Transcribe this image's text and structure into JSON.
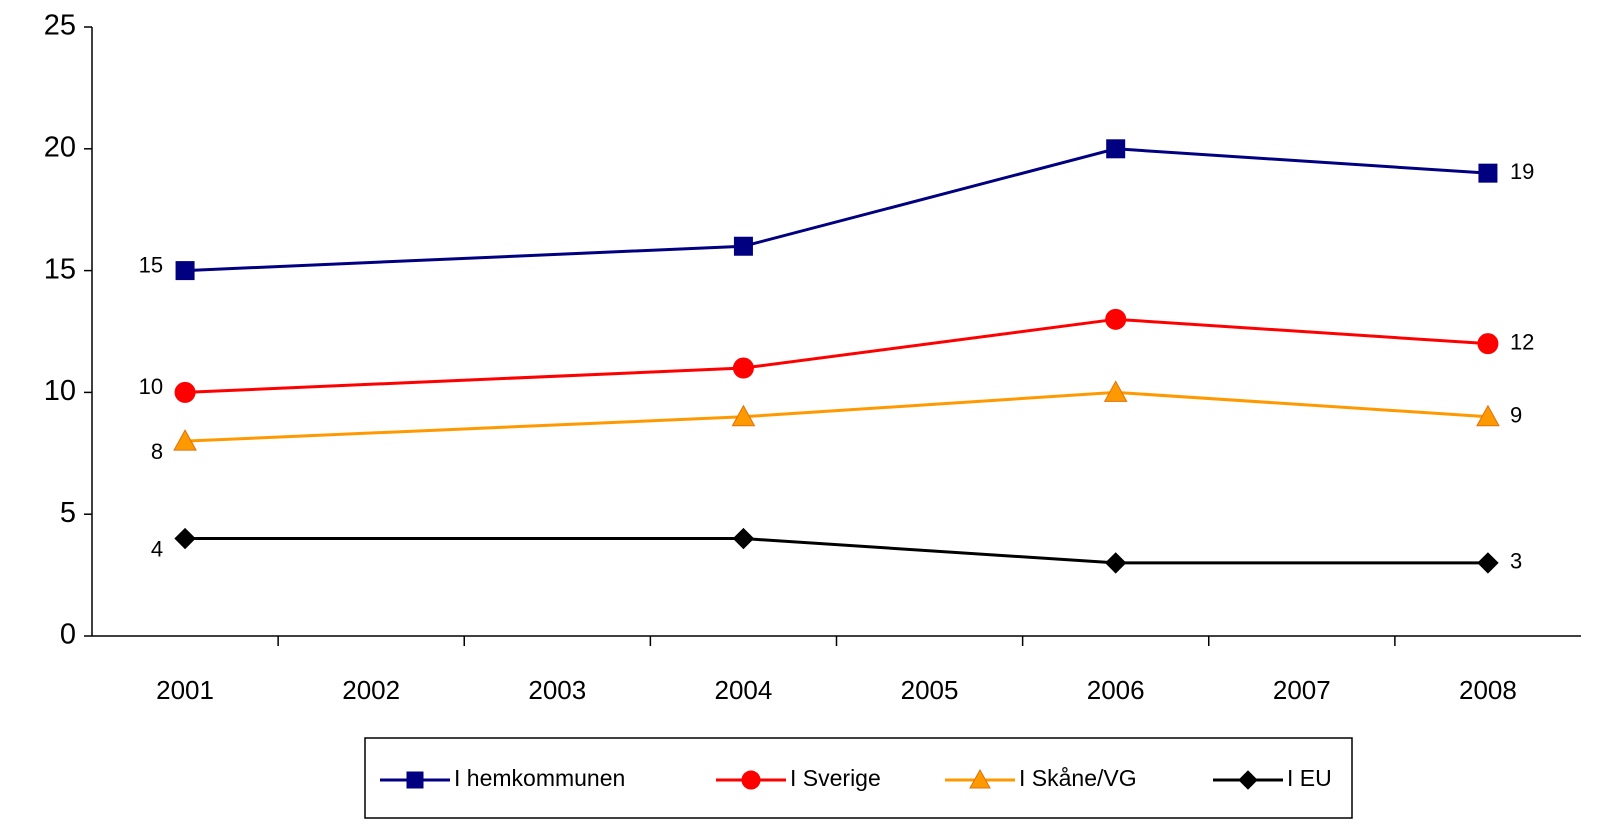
{
  "chart_data": {
    "type": "line",
    "x": [
      2001,
      2004,
      2006,
      2008
    ],
    "series": [
      {
        "name": "I hemkommunen",
        "color": "#000080",
        "marker": "square",
        "values": [
          15,
          16,
          20,
          19
        ]
      },
      {
        "name": "I Sverige",
        "color": "#ff0000",
        "marker": "circle",
        "values": [
          10,
          11,
          13,
          12
        ]
      },
      {
        "name": "I Skåne/VG",
        "color": "#ff9900",
        "marker": "triangle",
        "values": [
          8,
          9,
          10,
          9
        ]
      },
      {
        "name": "I EU",
        "color": "#000000",
        "marker": "diamond",
        "values": [
          4,
          4,
          3,
          3
        ]
      }
    ],
    "xlim": [
      2000.5,
      2008.5
    ],
    "xticks": [
      2001,
      2002,
      2003,
      2004,
      2005,
      2006,
      2007,
      2008
    ],
    "ylim": [
      0,
      25
    ],
    "yticks": [
      0,
      5,
      10,
      15,
      20,
      25
    ],
    "grid": false,
    "legend": "bottom"
  }
}
